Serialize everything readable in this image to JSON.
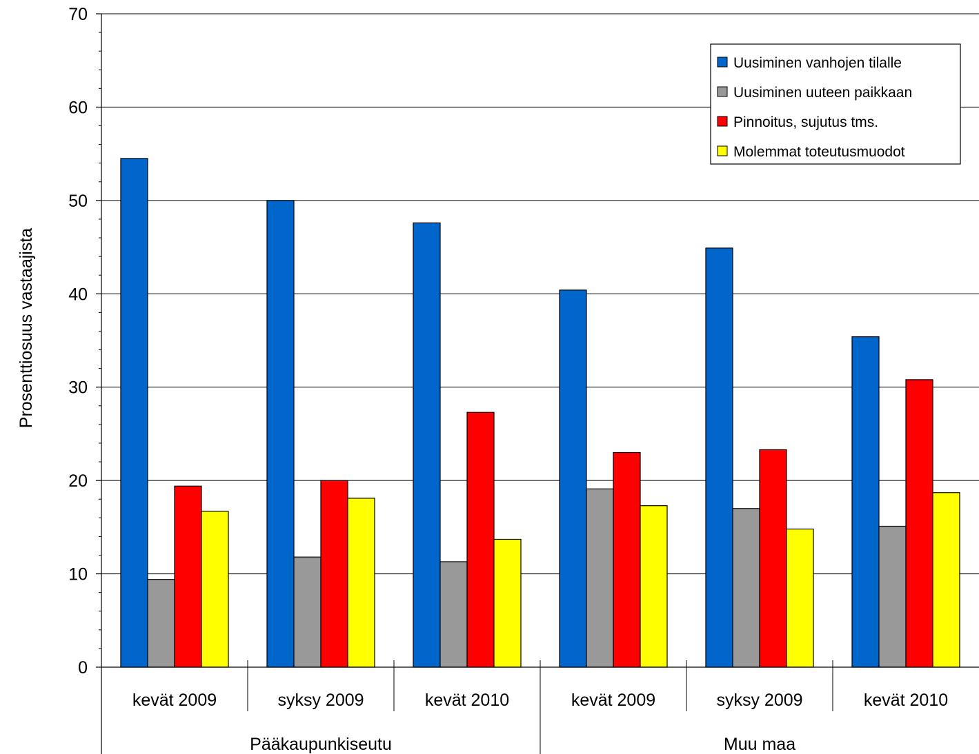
{
  "chart_data": {
    "type": "bar",
    "title": "",
    "ylabel": "Prosenttiosuus vastaajista",
    "xlabel": "",
    "ylim": [
      0,
      70
    ],
    "yticks": [
      0,
      10,
      20,
      30,
      40,
      50,
      60,
      70
    ],
    "grid": true,
    "legend_position": "top-right",
    "groups": [
      {
        "label": "Pääkaupunkiseutu",
        "categories": [
          "kevät 2009",
          "syksy 2009",
          "kevät 2010"
        ]
      },
      {
        "label": "Muu maa",
        "categories": [
          "kevät 2009",
          "syksy 2009",
          "kevät 2010"
        ]
      }
    ],
    "categories": [
      "kevät 2009",
      "syksy 2009",
      "kevät 2010",
      "kevät 2009",
      "syksy 2009",
      "kevät 2010"
    ],
    "series": [
      {
        "name": "Uusiminen vanhojen tilalle",
        "color": "#0066cc",
        "values": [
          54.5,
          50.0,
          47.6,
          40.4,
          44.9,
          35.4
        ]
      },
      {
        "name": "Uusiminen uuteen paikkaan",
        "color": "#999999",
        "values": [
          9.4,
          11.8,
          11.3,
          19.1,
          17.0,
          15.1
        ]
      },
      {
        "name": "Pinnoitus, sujutus tms.",
        "color": "#ff0000",
        "values": [
          19.4,
          20.0,
          27.3,
          23.0,
          23.3,
          30.8
        ]
      },
      {
        "name": "Molemmat toteutusmuodot",
        "color": "#ffff00",
        "values": [
          16.7,
          18.1,
          13.7,
          17.3,
          14.8,
          18.7
        ]
      }
    ]
  }
}
